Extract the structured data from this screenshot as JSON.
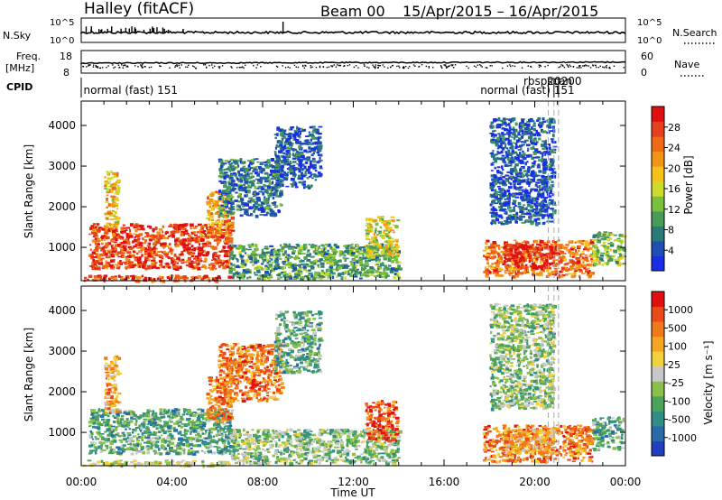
{
  "header": {
    "station": "Halley (fitACF)",
    "beam": "Beam 00",
    "dates": "15/Apr/2015 – 16/Apr/2015"
  },
  "strips": {
    "nsky_label": "N.Sky",
    "nsky_ticks": [
      "10^5",
      "10^0"
    ],
    "nsearch_label": "N.Search",
    "nsearch_ticks": [
      "10^5",
      "10^0"
    ],
    "freq_label_1": "Freq.",
    "freq_label_2": "[MHz]",
    "freq_ticks": [
      "18",
      "8"
    ],
    "nave_label": "Nave",
    "nave_ticks": [
      "60",
      "0"
    ],
    "cpid_label": "CPID",
    "cpid_entries": [
      {
        "text": "normal (fast) 151",
        "hour": 0.1
      },
      {
        "text": "normal (fast) 151",
        "hour": 17.6
      },
      {
        "text": "rbspscan",
        "hour": 19.5
      },
      {
        "text": "20200",
        "hour": 20.55
      }
    ]
  },
  "chart_data": [
    {
      "type": "heatmap",
      "name": "power-panel",
      "ylabel": "Slant Range [km]",
      "ylim": [
        180,
        4600
      ],
      "yticks": [
        "1000",
        "2000",
        "3000",
        "4000"
      ],
      "xlim": [
        0,
        24
      ],
      "colorbar": {
        "label": "Power [dB]",
        "ticks": [
          "28",
          "24",
          "20",
          "16",
          "12",
          "8",
          "4"
        ],
        "colors": [
          "#1a2ee6",
          "#1f4fb2",
          "#2b7a7a",
          "#4a9a5a",
          "#7cbf3a",
          "#cddc2a",
          "#f5c21a",
          "#f39418",
          "#ee6a14",
          "#e6401c",
          "#e01010"
        ]
      },
      "regions": [
        {
          "x0": 0.3,
          "x1": 6.6,
          "y0": 500,
          "y1": 1600,
          "v": 9
        },
        {
          "x0": 1.0,
          "x1": 1.6,
          "y0": 1500,
          "y1": 2900,
          "v": 6
        },
        {
          "x0": 5.5,
          "x1": 6.6,
          "y0": 1300,
          "y1": 2400,
          "v": 7
        },
        {
          "x0": 6.0,
          "x1": 8.8,
          "y0": 1800,
          "y1": 3200,
          "v": 2
        },
        {
          "x0": 6.5,
          "x1": 14.0,
          "y0": 250,
          "y1": 1100,
          "v": 3
        },
        {
          "x0": 12.5,
          "x1": 13.9,
          "y0": 800,
          "y1": 1800,
          "v": 5
        },
        {
          "x0": 8.5,
          "x1": 10.5,
          "y0": 2500,
          "y1": 4000,
          "v": 1
        },
        {
          "x0": 17.7,
          "x1": 22.5,
          "y0": 300,
          "y1": 1200,
          "v": 8
        },
        {
          "x0": 18.6,
          "x1": 20.8,
          "y0": 500,
          "y1": 1100,
          "v": 10
        },
        {
          "x0": 18.0,
          "x1": 20.8,
          "y0": 1600,
          "y1": 4200,
          "v": 1
        },
        {
          "x0": 22.5,
          "x1": 23.9,
          "y0": 600,
          "y1": 1400,
          "v": 4
        },
        {
          "x0": 0.0,
          "x1": 6.5,
          "y0": 200,
          "y1": 330,
          "v": 9
        }
      ]
    },
    {
      "type": "heatmap",
      "name": "velocity-panel",
      "ylabel": "Slant Range [km]",
      "ylim": [
        180,
        4600
      ],
      "yticks": [
        "1000",
        "2000",
        "3000",
        "4000"
      ],
      "xlim": [
        0,
        24
      ],
      "xticks": [
        "00:00",
        "04:00",
        "08:00",
        "12:00",
        "16:00",
        "20:00",
        "00:00"
      ],
      "xlabel": "Time UT",
      "colorbar": {
        "label": "Velocity [m s⁻¹]",
        "ticks": [
          "1000",
          "500",
          "100",
          "25",
          "-25",
          "-100",
          "-500",
          "-1000"
        ],
        "colors": [
          "#2040c0",
          "#2a6aa8",
          "#2f8f86",
          "#4da35a",
          "#8ac04a",
          "#c8c8c8",
          "#f2d23a",
          "#f4a623",
          "#f07a1a",
          "#ea4a18",
          "#e01010"
        ]
      },
      "regions": [
        {
          "x0": 0.3,
          "x1": 6.6,
          "y0": 500,
          "y1": 1600,
          "v": 3
        },
        {
          "x0": 1.0,
          "x1": 1.6,
          "y0": 1500,
          "y1": 2900,
          "v": 7
        },
        {
          "x0": 5.5,
          "x1": 6.6,
          "y0": 1300,
          "y1": 2400,
          "v": 8
        },
        {
          "x0": 6.0,
          "x1": 8.8,
          "y0": 1800,
          "y1": 3200,
          "v": 8
        },
        {
          "x0": 6.5,
          "x1": 14.0,
          "y0": 250,
          "y1": 1100,
          "v": 4
        },
        {
          "x0": 12.5,
          "x1": 13.9,
          "y0": 800,
          "y1": 1800,
          "v": 9
        },
        {
          "x0": 8.5,
          "x1": 10.5,
          "y0": 2500,
          "y1": 4000,
          "v": 3
        },
        {
          "x0": 17.7,
          "x1": 22.5,
          "y0": 300,
          "y1": 1200,
          "v": 8
        },
        {
          "x0": 18.6,
          "x1": 20.8,
          "y0": 500,
          "y1": 1100,
          "v": 7
        },
        {
          "x0": 18.0,
          "x1": 20.8,
          "y0": 1600,
          "y1": 4200,
          "v": 4
        },
        {
          "x0": 22.5,
          "x1": 23.9,
          "y0": 600,
          "y1": 1400,
          "v": 3
        },
        {
          "x0": 0.0,
          "x1": 6.5,
          "y0": 200,
          "y1": 330,
          "v": 5
        }
      ]
    }
  ]
}
